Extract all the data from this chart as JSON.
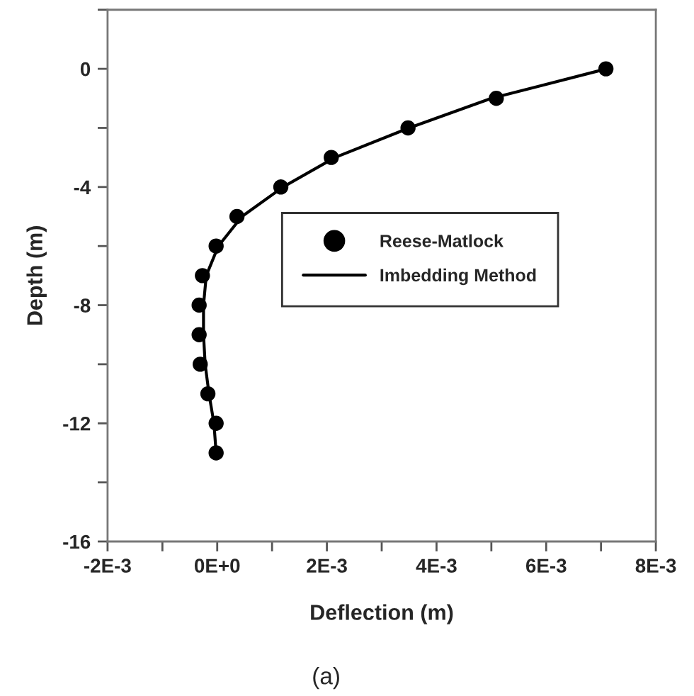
{
  "chart_data": {
    "type": "scatter",
    "xlabel": "Deflection (m)",
    "ylabel": "Depth (m)",
    "xlim": [
      -0.002,
      0.008
    ],
    "ylim": [
      -16,
      2
    ],
    "xticks": [
      {
        "value": -0.002,
        "label": "-2E-3"
      },
      {
        "value": -0.001,
        "label": null
      },
      {
        "value": 0,
        "label": "0E+0"
      },
      {
        "value": 0.001,
        "label": null
      },
      {
        "value": 0.002,
        "label": "2E-3"
      },
      {
        "value": 0.003,
        "label": null
      },
      {
        "value": 0.004,
        "label": "4E-3"
      },
      {
        "value": 0.005,
        "label": null
      },
      {
        "value": 0.006,
        "label": "6E-3"
      },
      {
        "value": 0.007,
        "label": null
      },
      {
        "value": 0.008,
        "label": "8E-3"
      }
    ],
    "yticks": [
      {
        "value": -16,
        "label": "-16"
      },
      {
        "value": -14,
        "label": null
      },
      {
        "value": -12,
        "label": "-12"
      },
      {
        "value": -10,
        "label": null
      },
      {
        "value": -8,
        "label": "-8"
      },
      {
        "value": -6,
        "label": null
      },
      {
        "value": -4,
        "label": "-4"
      },
      {
        "value": -2,
        "label": null
      },
      {
        "value": 0,
        "label": "0"
      },
      {
        "value": 2,
        "label": null
      }
    ],
    "series": [
      {
        "name": "Reese-Matlock",
        "marker": "circle",
        "color": "#000000",
        "x": [
          0.00709,
          0.00509,
          0.00348,
          0.00208,
          0.00116,
          0.00036,
          -2e-05,
          -0.00027,
          -0.00033,
          -0.00033,
          -0.00031,
          -0.00017,
          -2e-05,
          -2e-05
        ],
        "values": [
          0,
          -1,
          -2,
          -3,
          -4,
          -5,
          -6,
          -7,
          -8,
          -9,
          -10,
          -11,
          -12,
          -13
        ]
      },
      {
        "name": "Imbedding Method",
        "type": "line",
        "marker": "none",
        "line_style": "solid",
        "color": "#000000",
        "x": [
          0.0071,
          0.005,
          0.0035,
          0.00215,
          0.0012,
          0.00045,
          2e-05,
          -0.0002,
          -0.00025,
          -0.00025,
          -0.00022,
          -0.00015,
          -6e-05,
          -2e-05
        ],
        "values": [
          0,
          -1,
          -2,
          -3,
          -4,
          -5,
          -6,
          -7,
          -8,
          -9,
          -10,
          -11,
          -12,
          -13
        ]
      }
    ],
    "legend": "center",
    "grid": false,
    "annotations": [
      "(a)"
    ]
  }
}
